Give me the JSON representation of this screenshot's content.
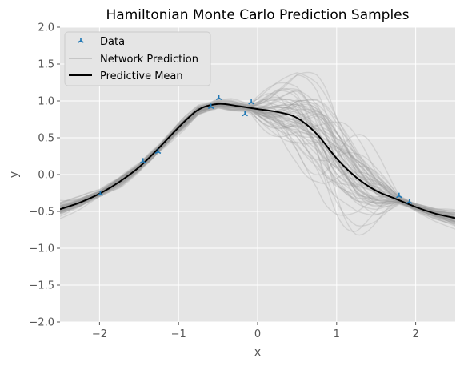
{
  "chart_data": {
    "type": "line",
    "title": "Hamiltonian Monte Carlo Prediction Samples",
    "xlabel": "x",
    "ylabel": "y",
    "xlim": [
      -2.5,
      2.5
    ],
    "ylim": [
      -2.0,
      2.0
    ],
    "xticks": [
      -2,
      -1,
      0,
      1,
      2
    ],
    "xtick_labels": [
      "−2",
      "−1",
      "0",
      "1",
      "2"
    ],
    "yticks": [
      -2.0,
      -1.5,
      -1.0,
      -0.5,
      0.0,
      0.5,
      1.0,
      1.5,
      2.0
    ],
    "ytick_labels": [
      "−2.0",
      "−1.5",
      "−1.0",
      "−0.5",
      "0.0",
      "0.5",
      "1.0",
      "1.5",
      "2.0"
    ],
    "grid": true,
    "legend_position": "upper-left",
    "legend": [
      "Data",
      "Network Prediction",
      "Predictive Mean"
    ],
    "colors": {
      "background": "#e5e5e5",
      "grid": "#ffffff",
      "data": "#1f77b4",
      "prediction": "#999999",
      "mean": "#000000"
    },
    "data_points": {
      "x": [
        -1.99,
        -1.45,
        -1.26,
        -0.59,
        -0.49,
        -0.16,
        -0.08,
        1.79,
        1.92
      ],
      "y": [
        -0.26,
        0.18,
        0.31,
        0.92,
        1.04,
        0.82,
        0.98,
        -0.29,
        -0.37
      ]
    },
    "predictive_mean": {
      "x": [
        -2.5,
        -2.25,
        -2.0,
        -1.75,
        -1.5,
        -1.25,
        -1.0,
        -0.75,
        -0.5,
        -0.25,
        0.0,
        0.25,
        0.5,
        0.75,
        1.0,
        1.25,
        1.5,
        1.75,
        2.0,
        2.25,
        2.5
      ],
      "y": [
        -0.47,
        -0.38,
        -0.26,
        -0.1,
        0.1,
        0.36,
        0.64,
        0.88,
        0.96,
        0.93,
        0.89,
        0.85,
        0.77,
        0.55,
        0.22,
        -0.04,
        -0.22,
        -0.33,
        -0.44,
        -0.53,
        -0.59
      ]
    },
    "network_samples": 60
  }
}
